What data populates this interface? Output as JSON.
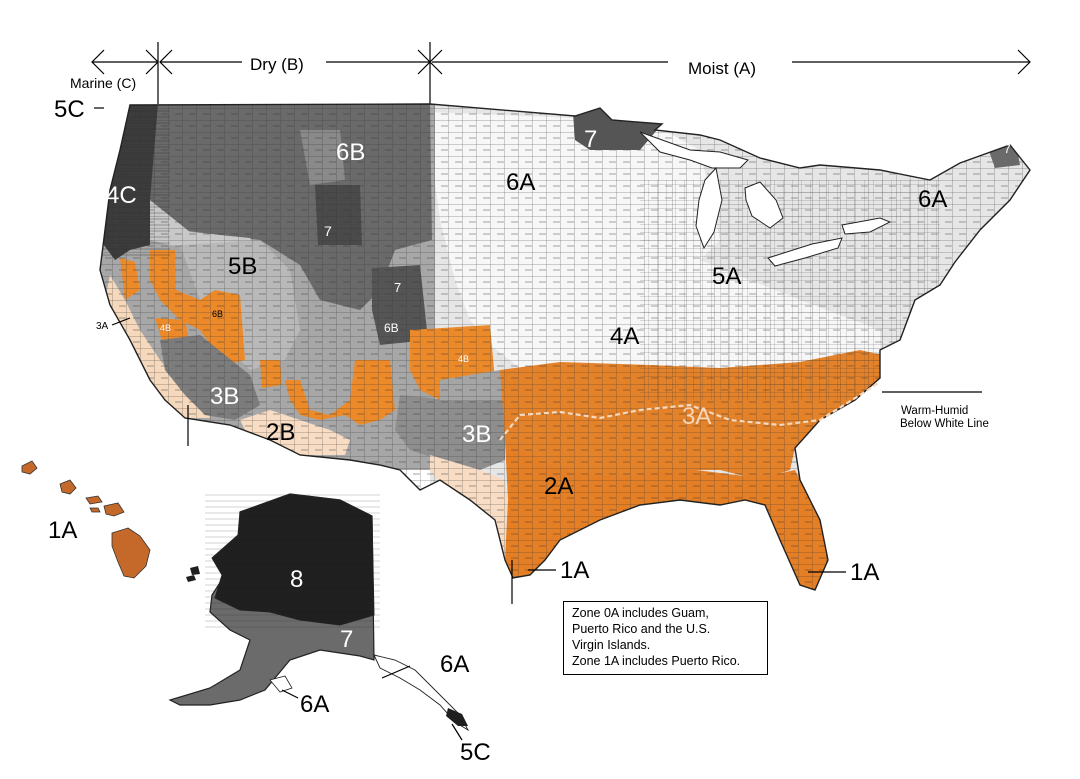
{
  "colors": {
    "marine_dark": "#3a3a3a",
    "dry_dark": "#5d5d5d",
    "dry_mid": "#9a9a9a",
    "dry_light": "#c2c2c2",
    "orange": "#ec8a2a",
    "peach": "#f7dcc3",
    "moist_light": "#e9e9e9",
    "moist_white": "#f8f8f8",
    "alaska_black": "#1e1e1e",
    "alaska_mid": "#6a6a6a",
    "hawaii": "#c4692a",
    "county_line": "#2f2f2f"
  },
  "headers": {
    "marine": "Marine (C)",
    "dry": "Dry (B)",
    "moist": "Moist (A)"
  },
  "warm_humid": {
    "line1": "Warm-Humid",
    "line2": "Below White Line"
  },
  "zones": {
    "z5C_north": "5C",
    "z4C": "4C",
    "z6B_north": "6B",
    "z7_wy": "7",
    "z5B": "5B",
    "z6B_ca": "6B",
    "z4B_ca": "4B",
    "z3A_ca": "3A",
    "z3B_ca": "3B",
    "z2B": "2B",
    "z3B_tx": "3B",
    "z7_co": "7",
    "z6B_co": "6B",
    "z4B_nm": "4B",
    "z7_mn": "7",
    "z6A_mw": "6A",
    "z5A": "5A",
    "z4A": "4A",
    "z3A": "3A",
    "z2A": "2A",
    "z1A_tx": "1A",
    "z1A_fl": "1A",
    "z1A_hi": "1A",
    "z6A_ne": "6A",
    "z7_me": "7",
    "z8_ak": "8",
    "z7_ak": "7",
    "z6A_ak_s": "6A",
    "z6A_ak_pan": "6A",
    "z5C_ak": "5C"
  },
  "note": {
    "line1": "Zone 0A includes Guam,",
    "line2": "Puerto Rico and the U.S.",
    "line3": "Virgin Islands.",
    "line4": "Zone 1A includes Puerto Rico."
  }
}
